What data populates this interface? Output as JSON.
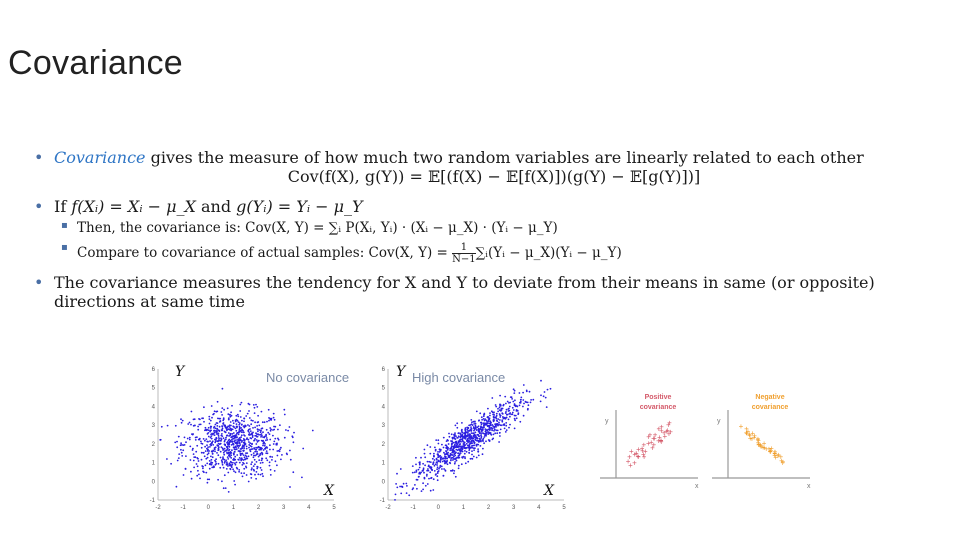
{
  "slide": {
    "title": "Covariance",
    "bullets": {
      "b1_term": "Covariance",
      "b1_text": " gives the measure of how much two random variables are linearly related to each other",
      "b1_formula": "Cov(f(X), g(Y)) = 𝔼[(f(X) − 𝔼[f(X)])(g(Y) − 𝔼[g(Y)])]",
      "b2_if": "If ",
      "b2_f": "f(Xᵢ) = Xᵢ − μ_X",
      "b2_and": " and ",
      "b2_g": "g(Yᵢ) = Yᵢ − μ_Y",
      "sub1_text": "Then, the covariance is: ",
      "sub1_formula": "Cov(X, Y) = ∑ᵢ P(Xᵢ, Yᵢ) · (Xᵢ − μ_X) · (Yᵢ − μ_Y)",
      "sub2_text": "Compare to covariance of actual samples: ",
      "sub2_lhs": "Cov(X, Y) = ",
      "sub2_num": "1",
      "sub2_den": "N−1",
      "sub2_rhs": "∑ᵢ(Yᵢ − μ_X)(Yᵢ − μ_Y)",
      "b3_text": "The covariance measures the tendency for X and Y to deviate from their means in same (or opposite) directions at same time"
    }
  },
  "figures": {
    "left": {
      "label": "No covariance",
      "x_letter": "X",
      "y_letter": "Y",
      "xticks": [
        "-2",
        "-1",
        "0",
        "1",
        "2",
        "3",
        "4",
        "5"
      ],
      "yticks": [
        "-1",
        "0",
        "1",
        "2",
        "3",
        "4",
        "5",
        "6"
      ],
      "color": "#2b1fe0"
    },
    "middle": {
      "label": "High covariance",
      "x_letter": "X",
      "y_letter": "Y",
      "xticks": [
        "-2",
        "-1",
        "0",
        "1",
        "2",
        "3",
        "4",
        "5"
      ],
      "yticks": [
        "-1",
        "0",
        "1",
        "2",
        "3",
        "4",
        "5",
        "6"
      ],
      "color": "#2b1fe0"
    },
    "pos": {
      "label1": "Positive",
      "label2": "covariance",
      "color": "#d45a6a",
      "x": "x",
      "y": "y"
    },
    "neg": {
      "label1": "Negative",
      "label2": "covariance",
      "color": "#f0a030",
      "x": "x",
      "y": "y"
    }
  },
  "chart_data": [
    {
      "type": "scatter",
      "title": "No covariance",
      "xlabel": "X",
      "ylabel": "Y",
      "xlim": [
        -2,
        5
      ],
      "ylim": [
        -1,
        6
      ],
      "mean": [
        1,
        2
      ],
      "sd": [
        1.0,
        0.9
      ],
      "correlation": 0.0,
      "n": 900
    },
    {
      "type": "scatter",
      "title": "High covariance",
      "xlabel": "X",
      "ylabel": "Y",
      "xlim": [
        -2,
        5
      ],
      "ylim": [
        -1,
        6
      ],
      "mean": [
        1.2,
        2.2
      ],
      "sd": [
        1.1,
        1.1
      ],
      "correlation": 0.9,
      "n": 900
    },
    {
      "type": "scatter",
      "title": "Positive covariance",
      "correlation": 0.9
    },
    {
      "type": "scatter",
      "title": "Negative covariance",
      "correlation": -0.9
    }
  ]
}
